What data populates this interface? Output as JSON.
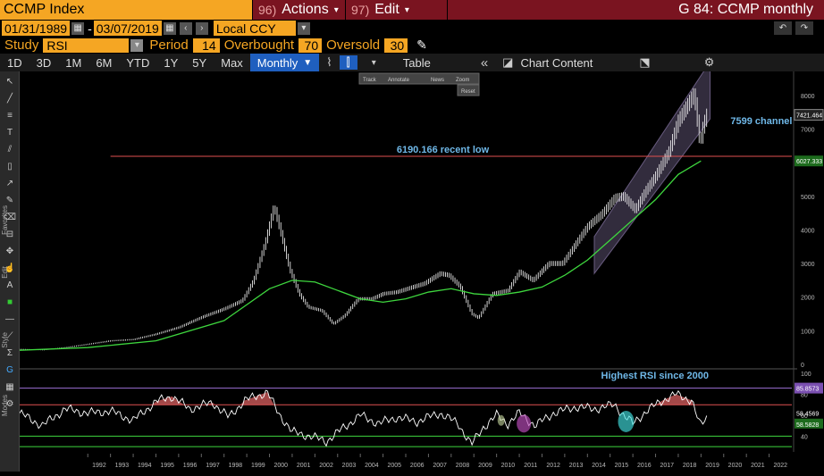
{
  "header": {
    "ticker": "CCMP Index",
    "actions_num": "96)",
    "actions_label": "Actions",
    "edit_num": "97)",
    "edit_label": "Edit",
    "chart_title": "G 84: CCMP monthly"
  },
  "dates": {
    "start": "01/31/1989",
    "sep": "-",
    "end": "03/07/2019",
    "currency": "Local CCY"
  },
  "study": {
    "label": "Study",
    "value": "RSI",
    "period_label": "Period",
    "period_value": "14",
    "overbought_label": "Overbought",
    "overbought_value": "70",
    "oversold_label": "Oversold",
    "oversold_value": "30"
  },
  "toolbar": {
    "timeframes": [
      "1D",
      "3D",
      "1M",
      "6M",
      "YTD",
      "1Y",
      "5Y",
      "Max"
    ],
    "frequency": "Monthly",
    "table_label": "Table",
    "chart_content_label": "Chart Content"
  },
  "popup": {
    "items": [
      "Track",
      "Annotate",
      "News",
      "Zoom"
    ],
    "reset": "Reset"
  },
  "side_labels": {
    "favorites": "Favorites",
    "edit": "Edit",
    "style": "Style",
    "modes": "Modes"
  },
  "chart_data": {
    "type": "line",
    "price_axis": {
      "ticks": [
        "8000",
        "7000",
        "6000",
        "5000",
        "4000",
        "3000",
        "2000",
        "1000",
        "0"
      ],
      "min": 0,
      "max": 8500
    },
    "rsi_axis": {
      "ticks": [
        "100",
        "80",
        "60",
        "40"
      ],
      "min": 25,
      "max": 100
    },
    "x_labels": [
      "1992",
      "1993",
      "1994",
      "1995",
      "1996",
      "1997",
      "1998",
      "1999",
      "2000",
      "2001",
      "2002",
      "2003",
      "2004",
      "2005",
      "2006",
      "2007",
      "2008",
      "2009",
      "2010",
      "2011",
      "2012",
      "2013",
      "2014",
      "2015",
      "2016",
      "2017",
      "2018",
      "2019",
      "2020",
      "2021",
      "2022"
    ],
    "x_range": [
      1989.0,
      2023.0
    ],
    "price_series": [
      [
        1989.0,
        450
      ],
      [
        1990.0,
        430
      ],
      [
        1991.0,
        500
      ],
      [
        1992.0,
        600
      ],
      [
        1993.0,
        700
      ],
      [
        1994.0,
        740
      ],
      [
        1995.0,
        900
      ],
      [
        1996.0,
        1100
      ],
      [
        1997.0,
        1400
      ],
      [
        1998.0,
        1650
      ],
      [
        1998.8,
        1900
      ],
      [
        1999.3,
        2500
      ],
      [
        1999.8,
        3600
      ],
      [
        2000.2,
        4700
      ],
      [
        2000.5,
        3900
      ],
      [
        2000.9,
        2800
      ],
      [
        2001.3,
        2100
      ],
      [
        2001.7,
        1700
      ],
      [
        2002.3,
        1600
      ],
      [
        2002.8,
        1200
      ],
      [
        2003.3,
        1450
      ],
      [
        2003.9,
        1950
      ],
      [
        2004.5,
        1950
      ],
      [
        2005.0,
        2100
      ],
      [
        2005.6,
        2150
      ],
      [
        2006.3,
        2300
      ],
      [
        2006.8,
        2400
      ],
      [
        2007.5,
        2700
      ],
      [
        2007.9,
        2650
      ],
      [
        2008.4,
        2300
      ],
      [
        2008.9,
        1500
      ],
      [
        2009.2,
        1380
      ],
      [
        2009.8,
        2100
      ],
      [
        2010.5,
        2200
      ],
      [
        2011.0,
        2750
      ],
      [
        2011.6,
        2500
      ],
      [
        2012.3,
        3000
      ],
      [
        2012.9,
        3000
      ],
      [
        2013.5,
        3600
      ],
      [
        2014.0,
        4100
      ],
      [
        2014.6,
        4450
      ],
      [
        2015.2,
        4950
      ],
      [
        2015.6,
        5000
      ],
      [
        2016.1,
        4600
      ],
      [
        2016.6,
        5200
      ],
      [
        2017.0,
        5600
      ],
      [
        2017.6,
        6350
      ],
      [
        2018.0,
        7250
      ],
      [
        2018.7,
        8050
      ],
      [
        2018.95,
        6550
      ],
      [
        2019.1,
        7100
      ],
      [
        2019.25,
        7421
      ]
    ],
    "ma_series": [
      [
        1989.0,
        420
      ],
      [
        1992.0,
        500
      ],
      [
        1995.0,
        700
      ],
      [
        1998.0,
        1300
      ],
      [
        2000.0,
        2250
      ],
      [
        2001.0,
        2500
      ],
      [
        2002.0,
        2450
      ],
      [
        2003.0,
        2200
      ],
      [
        2004.0,
        1950
      ],
      [
        2005.0,
        1850
      ],
      [
        2006.0,
        1950
      ],
      [
        2007.0,
        2150
      ],
      [
        2008.0,
        2250
      ],
      [
        2009.0,
        2100
      ],
      [
        2010.0,
        2050
      ],
      [
        2011.0,
        2150
      ],
      [
        2012.0,
        2300
      ],
      [
        2013.0,
        2650
      ],
      [
        2014.0,
        3100
      ],
      [
        2015.0,
        3700
      ],
      [
        2016.0,
        4300
      ],
      [
        2017.0,
        4900
      ],
      [
        2018.0,
        5650
      ],
      [
        2019.0,
        6050
      ]
    ],
    "rsi_series": [
      [
        1989.0,
        62
      ],
      [
        1990.0,
        50
      ],
      [
        1991.0,
        66
      ],
      [
        1992.0,
        62
      ],
      [
        1993.0,
        64
      ],
      [
        1994.0,
        55
      ],
      [
        1995.0,
        73
      ],
      [
        1995.7,
        78
      ],
      [
        1996.5,
        66
      ],
      [
        1997.5,
        72
      ],
      [
        1998.2,
        58
      ],
      [
        1998.9,
        74
      ],
      [
        1999.9,
        82
      ],
      [
        2000.4,
        62
      ],
      [
        2001.0,
        44
      ],
      [
        2001.8,
        40
      ],
      [
        2002.5,
        35
      ],
      [
        2003.2,
        47
      ],
      [
        2004.0,
        60
      ],
      [
        2004.8,
        52
      ],
      [
        2005.6,
        58
      ],
      [
        2006.5,
        54
      ],
      [
        2007.5,
        62
      ],
      [
        2008.3,
        52
      ],
      [
        2008.9,
        32
      ],
      [
        2009.4,
        48
      ],
      [
        2010.0,
        60
      ],
      [
        2010.5,
        52
      ],
      [
        2011.0,
        62
      ],
      [
        2011.7,
        50
      ],
      [
        2012.5,
        62
      ],
      [
        2013.5,
        68
      ],
      [
        2014.3,
        66
      ],
      [
        2015.2,
        70
      ],
      [
        2015.6,
        60
      ],
      [
        2016.0,
        52
      ],
      [
        2016.6,
        64
      ],
      [
        2017.3,
        74
      ],
      [
        2017.9,
        80
      ],
      [
        2018.6,
        74
      ],
      [
        2018.95,
        50
      ],
      [
        2019.25,
        58
      ]
    ],
    "price_labels": {
      "last": "7421.464",
      "ma_last": "6027.333"
    },
    "rsi_labels": {
      "high": "85.8573",
      "last": "58.4569",
      "mid": "58.5828"
    },
    "annotations": {
      "recent_low_text": "6190.166 recent low",
      "recent_low_value": 6190.166,
      "channel_text": "7599 channel",
      "rsi_text": "Highest RSI since 2000"
    },
    "rsi_levels": {
      "overbought": 70,
      "oversold": 30,
      "upper_band": 85.86,
      "lower_band": 40
    }
  },
  "colors": {
    "bg": "#000000",
    "orange": "#f5a623",
    "maroon": "#7a1420",
    "price_candle": "#ffffff",
    "ma_line": "#3ed63e",
    "recent_low_line": "#e05050",
    "channel_fill": "#b39ddb",
    "annotation_text": "#6fb8e8",
    "rsi_overbought_fill": "#d96060",
    "rsi_lower_line": "#3ed63e",
    "rsi_upper_line": "#9b6fd6"
  }
}
